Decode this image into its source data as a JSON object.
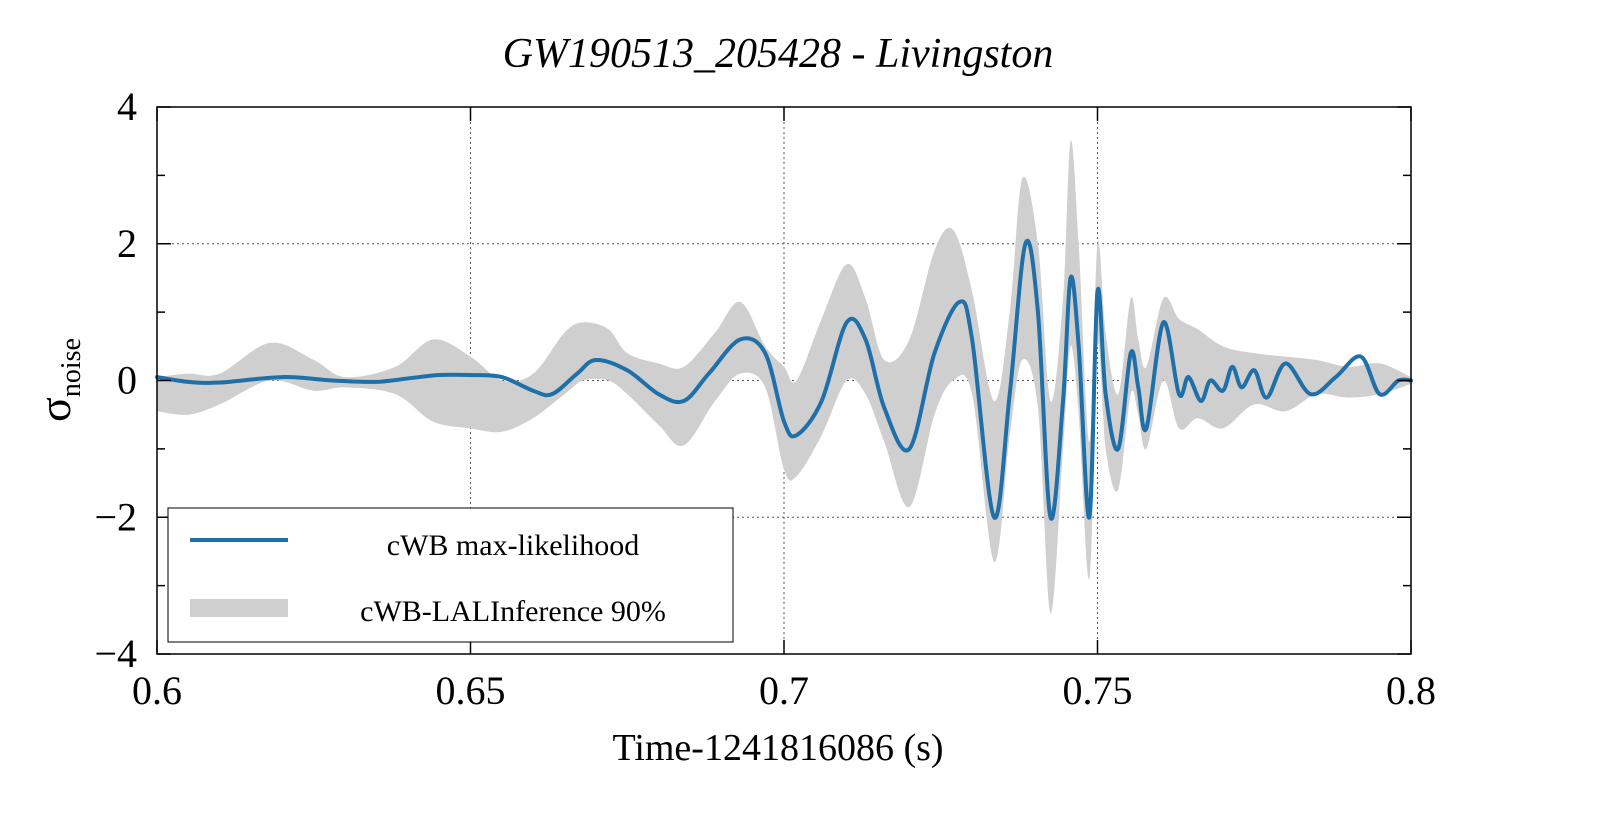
{
  "chart_data": {
    "type": "line",
    "title": "GW190513_205428 - Livingston",
    "xlabel": "Time-1241816086 (s)",
    "ylabel": {
      "main": "σ",
      "sub": "noise"
    },
    "xlim": [
      0.6,
      0.8
    ],
    "ylim": [
      -4,
      4
    ],
    "x_ticks": [
      {
        "value": 0.6,
        "label": "0.6"
      },
      {
        "value": 0.65,
        "label": "0.65"
      },
      {
        "value": 0.7,
        "label": "0.7"
      },
      {
        "value": 0.75,
        "label": "0.75"
      },
      {
        "value": 0.8,
        "label": "0.8"
      }
    ],
    "y_ticks": [
      {
        "value": 4,
        "label": "4"
      },
      {
        "value": 2,
        "label": "2"
      },
      {
        "value": 0,
        "label": "0"
      },
      {
        "value": -2,
        "label": "−2"
      },
      {
        "value": -4,
        "label": "−4"
      }
    ],
    "y_minor_ticks": [
      3,
      1,
      -1,
      -3
    ],
    "grid": "dotted",
    "legend_position": "bottom-left",
    "series": [
      {
        "name": "cWB max-likelihood",
        "kind": "line",
        "color": "#1f6fa8",
        "x": [
          0.6,
          0.605,
          0.61,
          0.62,
          0.628,
          0.635,
          0.64,
          0.645,
          0.65,
          0.655,
          0.66,
          0.663,
          0.667,
          0.67,
          0.675,
          0.68,
          0.684,
          0.688,
          0.693,
          0.697,
          0.7,
          0.702,
          0.706,
          0.71,
          0.713,
          0.716,
          0.72,
          0.724,
          0.728,
          0.73,
          0.7335,
          0.736,
          0.7385,
          0.7405,
          0.7425,
          0.7445,
          0.7457,
          0.747,
          0.7487,
          0.75,
          0.7513,
          0.7533,
          0.7553,
          0.7565,
          0.7578,
          0.7605,
          0.763,
          0.7645,
          0.7665,
          0.768,
          0.77,
          0.7715,
          0.773,
          0.775,
          0.777,
          0.78,
          0.784,
          0.788,
          0.792,
          0.795,
          0.798,
          0.8
        ],
        "y": [
          0.05,
          -0.02,
          -0.03,
          0.05,
          0.0,
          -0.02,
          0.03,
          0.08,
          0.08,
          0.05,
          -0.15,
          -0.2,
          0.1,
          0.3,
          0.15,
          -0.2,
          -0.3,
          0.1,
          0.6,
          0.4,
          -0.6,
          -0.8,
          -0.3,
          0.85,
          0.6,
          -0.4,
          -1.0,
          0.4,
          1.15,
          0.6,
          -2.0,
          -0.2,
          2.0,
          1.0,
          -2.0,
          -0.3,
          1.5,
          0.5,
          -2.0,
          1.3,
          -0.2,
          -1.0,
          0.4,
          -0.1,
          -0.7,
          0.85,
          -0.2,
          0.05,
          -0.3,
          0.0,
          -0.15,
          0.2,
          -0.1,
          0.15,
          -0.25,
          0.25,
          -0.2,
          0.05,
          0.35,
          -0.2,
          0.0,
          0.0
        ]
      },
      {
        "name": "cWB-LALInference 90%",
        "kind": "band",
        "color": "#cfcfcf",
        "x": [
          0.6,
          0.605,
          0.61,
          0.618,
          0.625,
          0.63,
          0.638,
          0.644,
          0.65,
          0.655,
          0.66,
          0.665,
          0.668,
          0.672,
          0.675,
          0.68,
          0.684,
          0.689,
          0.693,
          0.697,
          0.7,
          0.702,
          0.706,
          0.71,
          0.713,
          0.716,
          0.72,
          0.724,
          0.727,
          0.73,
          0.7335,
          0.736,
          0.738,
          0.7405,
          0.7425,
          0.7445,
          0.7457,
          0.747,
          0.7487,
          0.75,
          0.7513,
          0.7533,
          0.7553,
          0.7565,
          0.7578,
          0.7605,
          0.763,
          0.766,
          0.77,
          0.775,
          0.78,
          0.785,
          0.79,
          0.795,
          0.8
        ],
        "lower": [
          -0.45,
          -0.5,
          -0.35,
          0.0,
          -0.15,
          -0.1,
          -0.2,
          -0.6,
          -0.7,
          -0.75,
          -0.55,
          -0.2,
          0.0,
          0.0,
          -0.2,
          -0.65,
          -0.95,
          -0.3,
          0.1,
          -0.1,
          -1.3,
          -1.4,
          -0.8,
          0.0,
          -0.2,
          -0.9,
          -1.85,
          -0.5,
          0.0,
          -0.2,
          -2.65,
          -0.8,
          0.3,
          -0.4,
          -3.4,
          -1.0,
          0.5,
          -0.5,
          -2.9,
          0.5,
          -1.0,
          -1.6,
          -0.2,
          -0.5,
          -1.0,
          0.0,
          -0.7,
          -0.55,
          -0.7,
          -0.35,
          -0.45,
          -0.2,
          -0.25,
          -0.2,
          -0.05
        ],
        "upper": [
          0.05,
          0.1,
          0.1,
          0.55,
          0.3,
          0.05,
          0.2,
          0.6,
          0.35,
          0.0,
          0.1,
          0.7,
          0.85,
          0.75,
          0.4,
          0.25,
          0.2,
          0.7,
          1.15,
          0.5,
          0.2,
          0.0,
          0.9,
          1.7,
          1.2,
          0.3,
          0.6,
          1.9,
          2.2,
          1.3,
          -0.3,
          1.0,
          2.95,
          2.0,
          -0.3,
          1.2,
          3.5,
          2.0,
          -0.9,
          2.0,
          0.7,
          -0.2,
          1.2,
          0.6,
          0.2,
          1.2,
          0.9,
          0.75,
          0.5,
          0.4,
          0.35,
          0.3,
          0.2,
          0.25,
          0.05
        ]
      }
    ]
  }
}
